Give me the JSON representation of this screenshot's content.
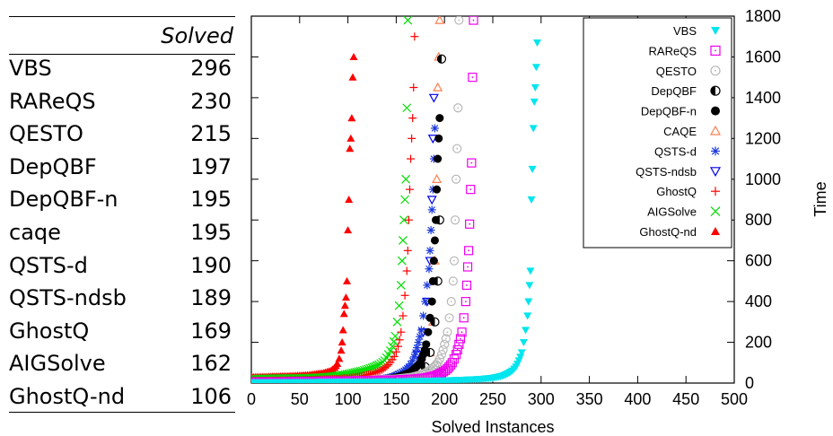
{
  "table": {
    "header": "Solved",
    "rows": [
      {
        "name": "VBS",
        "value": "296"
      },
      {
        "name": "RAReQS",
        "value": "230"
      },
      {
        "name": "QESTO",
        "value": "215"
      },
      {
        "name": "DepQBF",
        "value": "197"
      },
      {
        "name": "DepQBF-n",
        "value": "195"
      },
      {
        "name": "caqe",
        "value": "195"
      },
      {
        "name": "QSTS-d",
        "value": "190"
      },
      {
        "name": "QSTS-ndsb",
        "value": "189"
      },
      {
        "name": "GhostQ",
        "value": "169"
      },
      {
        "name": "AIGSolve",
        "value": "162"
      },
      {
        "name": "GhostQ-nd",
        "value": "106"
      }
    ]
  },
  "chart_data": {
    "type": "scatter",
    "xlabel": "Solved Instances",
    "ylabel": "Time",
    "xlim": [
      0,
      500
    ],
    "ylim": [
      0,
      1800
    ],
    "xticks": [
      0,
      50,
      100,
      150,
      200,
      250,
      300,
      350,
      400,
      450,
      500
    ],
    "yticks": [
      0,
      200,
      400,
      600,
      800,
      1000,
      1200,
      1400,
      1600,
      1800
    ],
    "grid": false,
    "legend_position": "top-right",
    "series": [
      {
        "name": "VBS",
        "marker": "triangle-down",
        "color": "#00e5ee",
        "solved": 296,
        "points": [
          [
            0,
            2
          ],
          [
            30,
            3
          ],
          [
            60,
            4
          ],
          [
            90,
            5
          ],
          [
            120,
            6
          ],
          [
            150,
            8
          ],
          [
            180,
            10
          ],
          [
            200,
            12
          ],
          [
            220,
            15
          ],
          [
            240,
            20
          ],
          [
            250,
            25
          ],
          [
            260,
            35
          ],
          [
            265,
            45
          ],
          [
            270,
            60
          ],
          [
            274,
            80
          ],
          [
            277,
            110
          ],
          [
            280,
            150
          ],
          [
            282,
            200
          ],
          [
            284,
            260
          ],
          [
            286,
            330
          ],
          [
            287,
            400
          ],
          [
            288,
            480
          ],
          [
            289,
            550
          ],
          [
            290,
            900
          ],
          [
            291,
            1050
          ],
          [
            292,
            1250
          ],
          [
            293,
            1380
          ],
          [
            294,
            1450
          ],
          [
            295,
            1550
          ],
          [
            296,
            1670
          ]
        ]
      },
      {
        "name": "RAReQS",
        "marker": "square",
        "color": "#ee00ee",
        "solved": 230,
        "points": [
          [
            0,
            5
          ],
          [
            30,
            6
          ],
          [
            60,
            8
          ],
          [
            90,
            10
          ],
          [
            120,
            12
          ],
          [
            150,
            15
          ],
          [
            170,
            20
          ],
          [
            180,
            25
          ],
          [
            190,
            35
          ],
          [
            197,
            50
          ],
          [
            203,
            70
          ],
          [
            208,
            100
          ],
          [
            212,
            140
          ],
          [
            215,
            190
          ],
          [
            218,
            250
          ],
          [
            220,
            320
          ],
          [
            222,
            400
          ],
          [
            223,
            480
          ],
          [
            224,
            570
          ],
          [
            225,
            650
          ],
          [
            226,
            780
          ],
          [
            227,
            950
          ],
          [
            228,
            1080
          ],
          [
            229,
            1500
          ],
          [
            230,
            1780
          ]
        ]
      },
      {
        "name": "QESTO",
        "marker": "circle",
        "color": "#b8b8b8",
        "solved": 215,
        "points": [
          [
            0,
            5
          ],
          [
            30,
            6
          ],
          [
            60,
            8
          ],
          [
            90,
            10
          ],
          [
            120,
            14
          ],
          [
            150,
            20
          ],
          [
            165,
            28
          ],
          [
            175,
            40
          ],
          [
            182,
            55
          ],
          [
            188,
            75
          ],
          [
            193,
            100
          ],
          [
            197,
            140
          ],
          [
            200,
            190
          ],
          [
            203,
            250
          ],
          [
            205,
            320
          ],
          [
            207,
            400
          ],
          [
            209,
            500
          ],
          [
            210,
            600
          ],
          [
            211,
            800
          ],
          [
            212,
            1000
          ],
          [
            213,
            1150
          ],
          [
            214,
            1350
          ],
          [
            215,
            1780
          ]
        ]
      },
      {
        "name": "DepQBF",
        "marker": "half-circle",
        "color": "#000000",
        "solved": 197,
        "points": [
          [
            120,
            10
          ],
          [
            150,
            20
          ],
          [
            170,
            40
          ],
          [
            180,
            80
          ],
          [
            185,
            150
          ],
          [
            190,
            300
          ],
          [
            193,
            500
          ],
          [
            195,
            800
          ],
          [
            197,
            1590
          ]
        ]
      },
      {
        "name": "DepQBF-n",
        "marker": "filled-circle",
        "color": "#000000",
        "solved": 195,
        "points": [
          [
            0,
            5
          ],
          [
            30,
            6
          ],
          [
            60,
            8
          ],
          [
            90,
            10
          ],
          [
            120,
            14
          ],
          [
            140,
            20
          ],
          [
            150,
            28
          ],
          [
            158,
            40
          ],
          [
            165,
            55
          ],
          [
            170,
            75
          ],
          [
            175,
            100
          ],
          [
            178,
            140
          ],
          [
            181,
            190
          ],
          [
            183,
            250
          ],
          [
            185,
            320
          ],
          [
            187,
            400
          ],
          [
            188,
            500
          ],
          [
            189,
            600
          ],
          [
            190,
            700
          ],
          [
            191,
            800
          ],
          [
            192,
            950
          ],
          [
            193,
            1100
          ],
          [
            194,
            1200
          ],
          [
            195,
            1300
          ]
        ]
      },
      {
        "name": "CAQE",
        "marker": "triangle-up-open",
        "color": "#ff7f50",
        "solved": 195,
        "points": [
          [
            120,
            10
          ],
          [
            150,
            20
          ],
          [
            170,
            40
          ],
          [
            180,
            80
          ],
          [
            185,
            150
          ],
          [
            188,
            300
          ],
          [
            190,
            600
          ],
          [
            192,
            1000
          ],
          [
            193,
            1450
          ],
          [
            194,
            1600
          ],
          [
            195,
            1780
          ]
        ]
      },
      {
        "name": "QSTS-d",
        "marker": "star",
        "color": "#1e3cdc",
        "solved": 190,
        "points": [
          [
            0,
            5
          ],
          [
            30,
            6
          ],
          [
            60,
            8
          ],
          [
            90,
            10
          ],
          [
            120,
            14
          ],
          [
            135,
            20
          ],
          [
            145,
            30
          ],
          [
            152,
            45
          ],
          [
            158,
            60
          ],
          [
            163,
            80
          ],
          [
            167,
            110
          ],
          [
            170,
            150
          ],
          [
            173,
            200
          ],
          [
            176,
            260
          ],
          [
            178,
            330
          ],
          [
            180,
            400
          ],
          [
            182,
            480
          ],
          [
            184,
            560
          ],
          [
            185,
            650
          ],
          [
            186,
            750
          ],
          [
            187,
            850
          ],
          [
            188,
            950
          ],
          [
            189,
            1100
          ],
          [
            190,
            1250
          ]
        ]
      },
      {
        "name": "QSTS-ndsb",
        "marker": "triangle-down-open",
        "color": "#0000ee",
        "solved": 189,
        "points": [
          [
            120,
            12
          ],
          [
            150,
            30
          ],
          [
            165,
            70
          ],
          [
            172,
            140
          ],
          [
            178,
            250
          ],
          [
            182,
            400
          ],
          [
            185,
            600
          ],
          [
            187,
            900
          ],
          [
            188,
            1200
          ],
          [
            189,
            1400
          ]
        ]
      },
      {
        "name": "GhostQ",
        "marker": "plus",
        "color": "#ff0000",
        "solved": 169,
        "points": [
          [
            0,
            10
          ],
          [
            30,
            12
          ],
          [
            60,
            15
          ],
          [
            90,
            20
          ],
          [
            110,
            30
          ],
          [
            125,
            45
          ],
          [
            135,
            65
          ],
          [
            142,
            90
          ],
          [
            148,
            130
          ],
          [
            152,
            180
          ],
          [
            155,
            250
          ],
          [
            157,
            330
          ],
          [
            159,
            430
          ],
          [
            161,
            550
          ],
          [
            162,
            650
          ],
          [
            163,
            800
          ],
          [
            164,
            950
          ],
          [
            165,
            1100
          ],
          [
            166,
            1200
          ],
          [
            167,
            1300
          ],
          [
            168,
            1450
          ],
          [
            169,
            1700
          ]
        ]
      },
      {
        "name": "AIGSolve",
        "marker": "cross",
        "color": "#00dd00",
        "solved": 162,
        "points": [
          [
            0,
            20
          ],
          [
            30,
            22
          ],
          [
            60,
            25
          ],
          [
            80,
            30
          ],
          [
            95,
            40
          ],
          [
            105,
            50
          ],
          [
            115,
            60
          ],
          [
            125,
            75
          ],
          [
            132,
            90
          ],
          [
            138,
            110
          ],
          [
            142,
            140
          ],
          [
            146,
            180
          ],
          [
            149,
            230
          ],
          [
            151,
            300
          ],
          [
            153,
            380
          ],
          [
            155,
            480
          ],
          [
            156,
            600
          ],
          [
            157,
            700
          ],
          [
            158,
            800
          ],
          [
            159,
            900
          ],
          [
            160,
            1000
          ],
          [
            161,
            1350
          ],
          [
            162,
            1780
          ]
        ]
      },
      {
        "name": "GhostQ-nd",
        "marker": "filled-triangle",
        "color": "#ff0000",
        "solved": 106,
        "points": [
          [
            0,
            30
          ],
          [
            20,
            32
          ],
          [
            40,
            35
          ],
          [
            60,
            40
          ],
          [
            75,
            50
          ],
          [
            82,
            60
          ],
          [
            86,
            75
          ],
          [
            89,
            95
          ],
          [
            91,
            120
          ],
          [
            93,
            160
          ],
          [
            94,
            200
          ],
          [
            95,
            260
          ],
          [
            96,
            340
          ],
          [
            97,
            380
          ],
          [
            98,
            420
          ],
          [
            99,
            500
          ],
          [
            100,
            750
          ],
          [
            101,
            900
          ],
          [
            102,
            1150
          ],
          [
            103,
            1200
          ],
          [
            104,
            1300
          ],
          [
            105,
            1500
          ],
          [
            106,
            1600
          ]
        ]
      }
    ]
  }
}
